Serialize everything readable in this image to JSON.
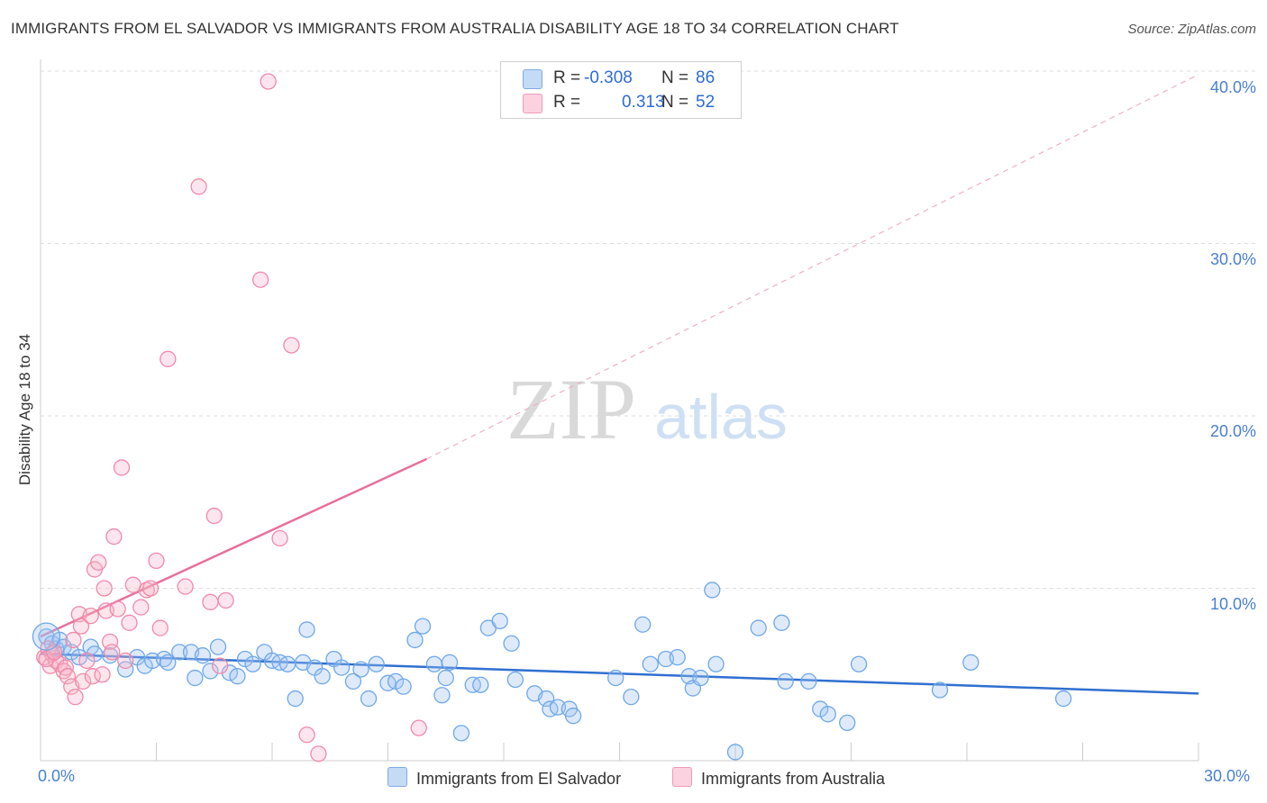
{
  "header": {
    "title": "IMMIGRANTS FROM EL SALVADOR VS IMMIGRANTS FROM AUSTRALIA DISABILITY AGE 18 TO 34 CORRELATION CHART",
    "source": "Source: ZipAtlas.com"
  },
  "watermark": {
    "zip": "ZIP",
    "atlas": "atlas"
  },
  "stats_box": {
    "rows": [
      {
        "r_label": "R =",
        "r_value": "-0.308",
        "n_label": "N =",
        "n_value": "86",
        "color": "#a8c8f0"
      },
      {
        "r_label": "R =",
        "r_value": "0.313",
        "n_label": "N =",
        "n_value": "52",
        "color": "#f5b8cb"
      }
    ]
  },
  "legend": {
    "items": [
      {
        "label": "Immigrants from El Salvador",
        "color": "#a8c8f0"
      },
      {
        "label": "Immigrants from Australia",
        "color": "#f5b8cb"
      }
    ]
  },
  "colors": {
    "blue_point": "#6fa8e8",
    "blue_fill": "rgba(160,196,240,0.35)",
    "blue_line": "#2f6fd0",
    "pink_point": "#f08aaa",
    "pink_fill": "rgba(245,180,200,0.35)",
    "pink_line": "#e8709a",
    "tick_text": "#4a7fd0",
    "grid": "#dddddd"
  },
  "chart_data": {
    "type": "scatter",
    "title": "IMMIGRANTS FROM EL SALVADOR VS IMMIGRANTS FROM AUSTRALIA DISABILITY AGE 18 TO 34 CORRELATION CHART",
    "xlabel": "",
    "ylabel": "Disability Age 18 to 34",
    "xlim": [
      0,
      30
    ],
    "ylim": [
      0,
      40
    ],
    "x_tick_labels": [
      "0.0%",
      "30.0%"
    ],
    "y_ticks": [
      10,
      20,
      30,
      40
    ],
    "y_tick_labels": [
      "10.0%",
      "20.0%",
      "30.0%",
      "40.0%"
    ],
    "grid": true,
    "legend_position": "bottom",
    "series": [
      {
        "name": "Immigrants from El Salvador",
        "points": [
          [
            0.15,
            7.2
          ],
          [
            0.3,
            6.8
          ],
          [
            0.4,
            6.5
          ],
          [
            0.5,
            7.0
          ],
          [
            0.6,
            6.6
          ],
          [
            0.8,
            6.3
          ],
          [
            1.0,
            6.0
          ],
          [
            1.3,
            6.6
          ],
          [
            1.4,
            6.2
          ],
          [
            1.8,
            6.1
          ],
          [
            2.2,
            5.3
          ],
          [
            2.5,
            6.0
          ],
          [
            2.7,
            5.5
          ],
          [
            2.9,
            5.8
          ],
          [
            3.2,
            5.9
          ],
          [
            3.3,
            5.7
          ],
          [
            3.6,
            6.3
          ],
          [
            3.9,
            6.3
          ],
          [
            4.0,
            4.8
          ],
          [
            4.2,
            6.1
          ],
          [
            4.4,
            5.2
          ],
          [
            4.6,
            6.6
          ],
          [
            4.9,
            5.1
          ],
          [
            5.1,
            4.9
          ],
          [
            5.3,
            5.9
          ],
          [
            5.5,
            5.6
          ],
          [
            5.8,
            6.3
          ],
          [
            6.0,
            5.8
          ],
          [
            6.2,
            5.7
          ],
          [
            6.4,
            5.6
          ],
          [
            6.6,
            3.6
          ],
          [
            6.8,
            5.7
          ],
          [
            6.9,
            7.6
          ],
          [
            7.1,
            5.4
          ],
          [
            7.3,
            4.9
          ],
          [
            7.6,
            5.9
          ],
          [
            7.8,
            5.4
          ],
          [
            8.1,
            4.6
          ],
          [
            8.3,
            5.3
          ],
          [
            8.5,
            3.6
          ],
          [
            8.7,
            5.6
          ],
          [
            9.0,
            4.5
          ],
          [
            9.2,
            4.6
          ],
          [
            9.4,
            4.3
          ],
          [
            9.7,
            7.0
          ],
          [
            9.9,
            7.8
          ],
          [
            10.2,
            5.6
          ],
          [
            10.4,
            3.8
          ],
          [
            10.5,
            4.8
          ],
          [
            10.6,
            5.7
          ],
          [
            10.9,
            1.6
          ],
          [
            11.2,
            4.4
          ],
          [
            11.4,
            4.4
          ],
          [
            11.6,
            7.7
          ],
          [
            11.9,
            8.1
          ],
          [
            12.2,
            6.8
          ],
          [
            12.3,
            4.7
          ],
          [
            12.8,
            3.9
          ],
          [
            13.1,
            3.6
          ],
          [
            13.2,
            3.0
          ],
          [
            13.4,
            3.1
          ],
          [
            13.7,
            3.0
          ],
          [
            13.8,
            2.6
          ],
          [
            14.9,
            4.8
          ],
          [
            15.3,
            3.7
          ],
          [
            15.6,
            7.9
          ],
          [
            15.8,
            5.6
          ],
          [
            16.2,
            5.9
          ],
          [
            16.5,
            6.0
          ],
          [
            16.8,
            4.9
          ],
          [
            16.9,
            4.2
          ],
          [
            17.1,
            4.8
          ],
          [
            17.4,
            9.9
          ],
          [
            17.5,
            5.6
          ],
          [
            18.0,
            0.5
          ],
          [
            18.6,
            7.7
          ],
          [
            19.2,
            8.0
          ],
          [
            19.3,
            4.6
          ],
          [
            19.9,
            4.6
          ],
          [
            20.2,
            3.0
          ],
          [
            20.4,
            2.7
          ],
          [
            20.9,
            2.2
          ],
          [
            21.2,
            5.6
          ],
          [
            23.3,
            4.1
          ],
          [
            24.1,
            5.7
          ],
          [
            26.5,
            3.6
          ]
        ]
      },
      {
        "name": "Immigrants from Australia",
        "points": [
          [
            0.1,
            6.0
          ],
          [
            0.2,
            6.5
          ],
          [
            0.25,
            5.5
          ],
          [
            0.3,
            6.2
          ],
          [
            0.4,
            5.8
          ],
          [
            0.5,
            5.6
          ],
          [
            0.6,
            5.2
          ],
          [
            0.65,
            5.4
          ],
          [
            0.7,
            4.9
          ],
          [
            0.8,
            4.3
          ],
          [
            0.85,
            7.0
          ],
          [
            0.9,
            3.7
          ],
          [
            1.0,
            8.5
          ],
          [
            1.05,
            7.8
          ],
          [
            1.1,
            4.6
          ],
          [
            1.2,
            5.8
          ],
          [
            1.3,
            8.4
          ],
          [
            1.35,
            4.9
          ],
          [
            1.4,
            11.1
          ],
          [
            1.5,
            11.5
          ],
          [
            1.6,
            5.0
          ],
          [
            1.65,
            10.0
          ],
          [
            1.7,
            8.7
          ],
          [
            1.8,
            6.9
          ],
          [
            1.85,
            6.3
          ],
          [
            1.9,
            13.0
          ],
          [
            2.0,
            8.8
          ],
          [
            2.1,
            17.0
          ],
          [
            2.2,
            5.8
          ],
          [
            2.3,
            8.0
          ],
          [
            2.4,
            10.2
          ],
          [
            2.6,
            8.9
          ],
          [
            2.75,
            9.9
          ],
          [
            2.85,
            10.0
          ],
          [
            3.0,
            11.6
          ],
          [
            3.1,
            7.7
          ],
          [
            3.3,
            23.3
          ],
          [
            3.75,
            10.1
          ],
          [
            4.1,
            33.3
          ],
          [
            4.4,
            9.2
          ],
          [
            4.5,
            14.2
          ],
          [
            4.65,
            5.5
          ],
          [
            4.8,
            9.3
          ],
          [
            5.7,
            27.9
          ],
          [
            5.9,
            39.4
          ],
          [
            6.2,
            12.9
          ],
          [
            6.5,
            24.1
          ],
          [
            6.9,
            1.5
          ],
          [
            7.2,
            0.4
          ],
          [
            9.8,
            1.9
          ],
          [
            0.15,
            5.9
          ],
          [
            0.35,
            6.3
          ]
        ]
      }
    ],
    "trend_lines": [
      {
        "series": "Immigrants from El Salvador",
        "from": [
          0,
          6.2
        ],
        "to": [
          30,
          3.9
        ]
      },
      {
        "series": "Immigrants from Australia",
        "from": [
          0,
          7.2
        ],
        "to": [
          10,
          17.5
        ],
        "extension_to": [
          30,
          39.8
        ]
      }
    ]
  }
}
